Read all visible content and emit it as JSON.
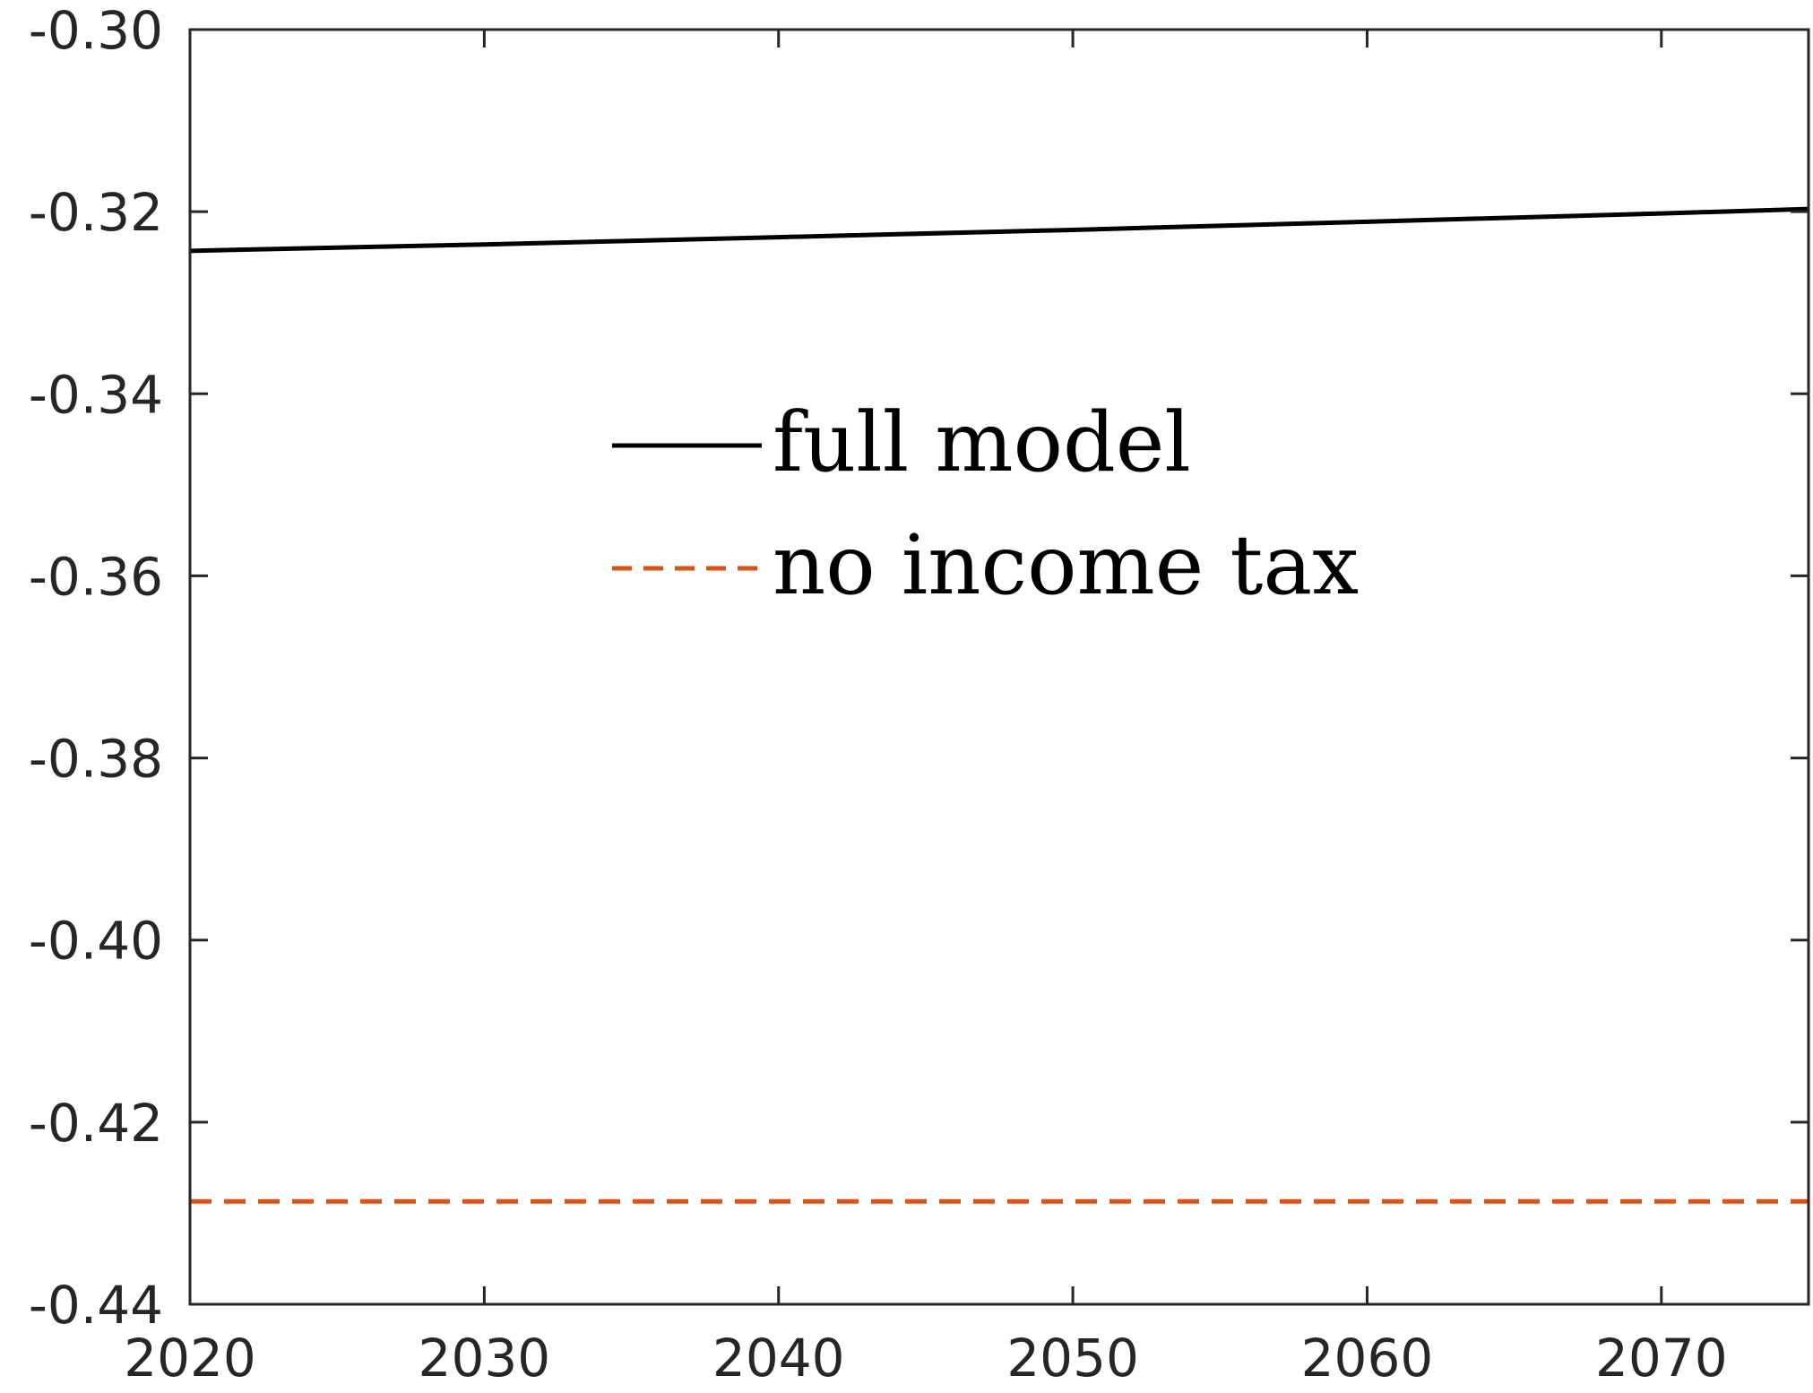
{
  "chart_data": {
    "type": "line",
    "title": "",
    "xlabel": "",
    "ylabel": "",
    "xlim": [
      2020,
      2075
    ],
    "ylim": [
      -0.44,
      -0.3
    ],
    "grid": false,
    "legend_position": "center",
    "x_ticks": [
      2020,
      2030,
      2040,
      2050,
      2060,
      2070
    ],
    "x_tick_labels": [
      "2020",
      "2030",
      "2040",
      "2050",
      "2060",
      "2070"
    ],
    "y_ticks": [
      -0.3,
      -0.32,
      -0.34,
      -0.36,
      -0.38,
      -0.4,
      -0.42,
      -0.44
    ],
    "y_tick_labels": [
      "-0.30",
      "-0.32",
      "-0.34",
      "-0.36",
      "-0.38",
      "-0.40",
      "-0.42",
      "-0.44"
    ],
    "series": [
      {
        "name": "full model",
        "color": "#000000",
        "dash": "solid",
        "x": [
          2020,
          2030,
          2040,
          2050,
          2060,
          2070,
          2075
        ],
        "y": [
          -0.3243,
          -0.3236,
          -0.3228,
          -0.322,
          -0.3211,
          -0.3202,
          -0.3197
        ]
      },
      {
        "name": "no income tax",
        "color": "#D95319",
        "dash": "dashed",
        "x": [
          2020,
          2075
        ],
        "y": [
          -0.4287,
          -0.4287
        ]
      }
    ]
  }
}
